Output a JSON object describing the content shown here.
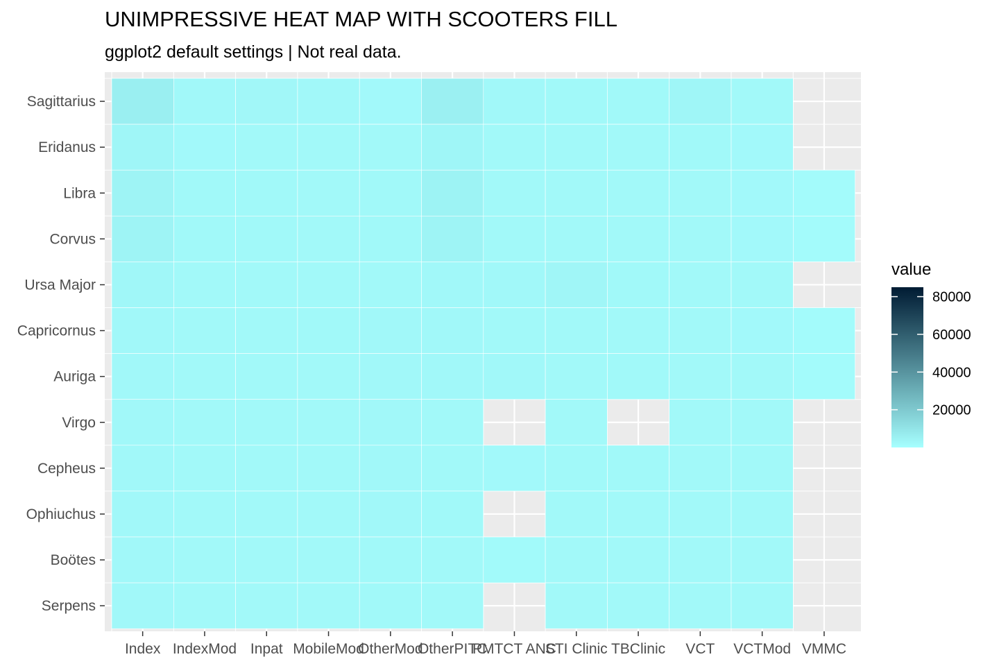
{
  "chart_data": {
    "type": "heatmap",
    "title": "UNIMPRESSIVE HEAT MAP WITH SCOOTERS FILL",
    "subtitle": "ggplot2 default settings | Not real data.",
    "x_categories": [
      "Index",
      "IndexMod",
      "Inpat",
      "MobileMod",
      "OtherMod",
      "OtherPITC",
      "PMTCT ANC",
      "STI Clinic",
      "TBClinic",
      "VCT",
      "VCTMod",
      "VMMC"
    ],
    "y_categories": [
      "Sagittarius",
      "Eridanus",
      "Libra",
      "Corvus",
      "Ursa Major",
      "Capricornus",
      "Auriga",
      "Virgo",
      "Cepheus",
      "Ophiuchus",
      "Boötes",
      "Serpens"
    ],
    "values": [
      [
        6000,
        2500,
        2800,
        2600,
        2200,
        5500,
        2500,
        2400,
        2400,
        3500,
        2300,
        null
      ],
      [
        3500,
        2200,
        2300,
        2300,
        2300,
        3500,
        2300,
        2300,
        2300,
        2400,
        2200,
        null
      ],
      [
        4000,
        2400,
        2400,
        2300,
        2400,
        4500,
        2300,
        2300,
        2300,
        2300,
        2200,
        1500
      ],
      [
        4000,
        2400,
        2400,
        2300,
        2400,
        4000,
        2300,
        2300,
        2300,
        2300,
        2200,
        1500
      ],
      [
        3000,
        2300,
        2300,
        2300,
        2300,
        2600,
        2600,
        3200,
        2400,
        2300,
        2300,
        null
      ],
      [
        2600,
        2300,
        2300,
        2400,
        2600,
        2500,
        2300,
        2300,
        2300,
        2300,
        2200,
        1500
      ],
      [
        2600,
        2300,
        2300,
        2300,
        2500,
        2500,
        2500,
        2300,
        2400,
        2300,
        2300,
        1500
      ],
      [
        2500,
        2300,
        2300,
        2300,
        2600,
        2300,
        null,
        2300,
        null,
        2300,
        2300,
        null
      ],
      [
        2500,
        2300,
        2300,
        2300,
        2500,
        2300,
        2200,
        2400,
        2400,
        2300,
        2300,
        null
      ],
      [
        2500,
        2300,
        2300,
        2300,
        2600,
        2400,
        null,
        2300,
        2300,
        2300,
        2300,
        null
      ],
      [
        2500,
        2300,
        2300,
        2300,
        2400,
        2300,
        2000,
        2300,
        2300,
        2300,
        2300,
        null
      ],
      [
        2500,
        2300,
        2300,
        2300,
        2400,
        2300,
        null,
        2300,
        2300,
        2300,
        2300,
        null
      ]
    ],
    "xlabel": "",
    "ylabel": "",
    "legend": {
      "title": "value",
      "ticks": [
        80000,
        60000,
        40000,
        20000
      ],
      "tick_labels": [
        "80000",
        "60000",
        "40000",
        "20000"
      ],
      "range": [
        0,
        85000
      ],
      "low_color": "#a6ffff",
      "high_color": "#001b33"
    },
    "panel_background": "#ebebeb",
    "grid_color": "#ffffff",
    "grid": true,
    "legend_position": "right"
  }
}
